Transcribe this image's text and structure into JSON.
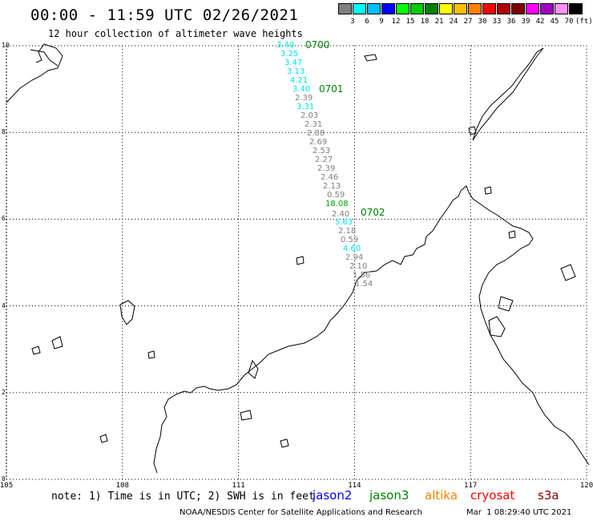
{
  "title": "00:00 - 11:59 UTC 02/26/2021",
  "subtitle": "12 hour collection of altimeter wave heights",
  "legend": {
    "colors": [
      "#808080",
      "#00ffff",
      "#00bfff",
      "#0000ff",
      "#00ff00",
      "#00cc00",
      "#008000",
      "#ffff00",
      "#ffbf00",
      "#ff8000",
      "#ff0000",
      "#b00000",
      "#800000",
      "#ff00ff",
      "#a000c0",
      "#ff90ff",
      "#000000"
    ],
    "labels": [
      "3",
      "6",
      "9",
      "12",
      "15",
      "18",
      "21",
      "24",
      "27",
      "30",
      "33",
      "36",
      "39",
      "42",
      "45",
      "70",
      "(ft)"
    ]
  },
  "map": {
    "lat_labels": [
      "10",
      "8",
      "6",
      "4",
      "2",
      "0"
    ],
    "lon_labels": [
      "105",
      "108",
      "111",
      "114",
      "117",
      "120"
    ],
    "lon_min": 105,
    "lon_max": 120,
    "lat_min": 0,
    "lat_max": 10
  },
  "track": [
    {
      "v": "3.40",
      "c": "#00e5ee"
    },
    {
      "v": "3.25",
      "c": "#00e5ee"
    },
    {
      "v": "3.47",
      "c": "#00e5ee"
    },
    {
      "v": "3.13",
      "c": "#00e5ee"
    },
    {
      "v": "4.21",
      "c": "#00e5ee"
    },
    {
      "v": "3.40",
      "c": "#00e5ee"
    },
    {
      "v": "2.39",
      "c": "#808080"
    },
    {
      "v": "3.31",
      "c": "#00e5ee"
    },
    {
      "v": "2.03",
      "c": "#808080"
    },
    {
      "v": "2.31",
      "c": "#808080"
    },
    {
      "v": "2.88",
      "c": "#808080"
    },
    {
      "v": "2.69",
      "c": "#808080"
    },
    {
      "v": "2.53",
      "c": "#808080"
    },
    {
      "v": "2.27",
      "c": "#808080"
    },
    {
      "v": "2.39",
      "c": "#808080"
    },
    {
      "v": "2.46",
      "c": "#808080"
    },
    {
      "v": "2.13",
      "c": "#808080"
    },
    {
      "v": "0.59",
      "c": "#808080"
    },
    {
      "v": "18.08",
      "c": "#00a000"
    },
    {
      "v": "2.40",
      "c": "#808080"
    },
    {
      "v": "5.63",
      "c": "#00e5ee"
    },
    {
      "v": "2.18",
      "c": "#808080"
    },
    {
      "v": "0.59",
      "c": "#808080"
    },
    {
      "v": "4.60",
      "c": "#00e5ee"
    },
    {
      "v": "2.94",
      "c": "#808080"
    },
    {
      "v": "2.10",
      "c": "#808080"
    },
    {
      "v": "1.56",
      "c": "#808080"
    },
    {
      "v": "1.54",
      "c": "#808080"
    }
  ],
  "times": [
    "0700",
    "0701",
    "0702"
  ],
  "time_color": "#008000",
  "note": "note: 1) Time is in UTC; 2) SWH is in feet",
  "satellites": [
    {
      "name": "jason2",
      "color": "#0000ff"
    },
    {
      "name": "jason3",
      "color": "#008000"
    },
    {
      "name": "altika",
      "color": "#ff8000"
    },
    {
      "name": "cryosat",
      "color": "#ff0000"
    },
    {
      "name": "s3a",
      "color": "#800000"
    }
  ],
  "credit": "NOAA/NESDIS Center for Satellite Applications and Research",
  "stamp": "Mar  1 08:29:40 UTC 2021"
}
